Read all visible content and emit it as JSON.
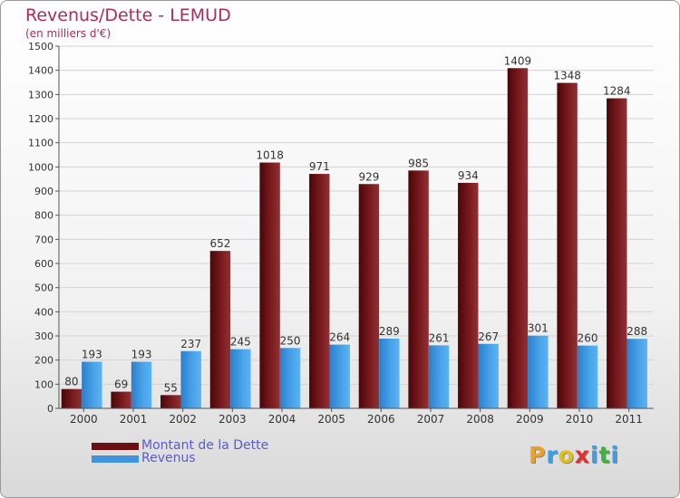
{
  "title": "Revenus/Dette - LEMUD",
  "subtitle": "(en milliers d'€)",
  "legend": {
    "items": [
      {
        "label": "Montant de la Dette",
        "color": "#6b0f12"
      },
      {
        "label": "Revenus",
        "color": "#3d95dd"
      }
    ]
  },
  "logo": {
    "letters": [
      "P",
      "r",
      "o",
      "x",
      "i",
      "t",
      "i"
    ],
    "colors": [
      "#f0a020",
      "#3aa0e0",
      "#e0c020",
      "#e03030",
      "#3aa0e0",
      "#40b040",
      "#3aa0e0"
    ]
  },
  "chart_data": {
    "type": "bar",
    "categories": [
      "2000",
      "2001",
      "2002",
      "2003",
      "2004",
      "2005",
      "2006",
      "2007",
      "2008",
      "2009",
      "2010",
      "2011"
    ],
    "series": [
      {
        "name": "Montant de la Dette",
        "color": "#6b0f12",
        "values": [
          80,
          69,
          55,
          652,
          1018,
          971,
          929,
          985,
          934,
          1409,
          1348,
          1284
        ]
      },
      {
        "name": "Revenus",
        "color": "#3d95dd",
        "values": [
          193,
          193,
          237,
          245,
          250,
          264,
          289,
          261,
          267,
          301,
          260,
          288
        ]
      }
    ],
    "ylim": [
      0,
      1500
    ],
    "yticks": [
      0,
      100,
      200,
      300,
      400,
      500,
      600,
      700,
      800,
      900,
      1000,
      1100,
      1200,
      1300,
      1400,
      1500
    ],
    "grid": true,
    "legend_position": "bottom-left"
  }
}
